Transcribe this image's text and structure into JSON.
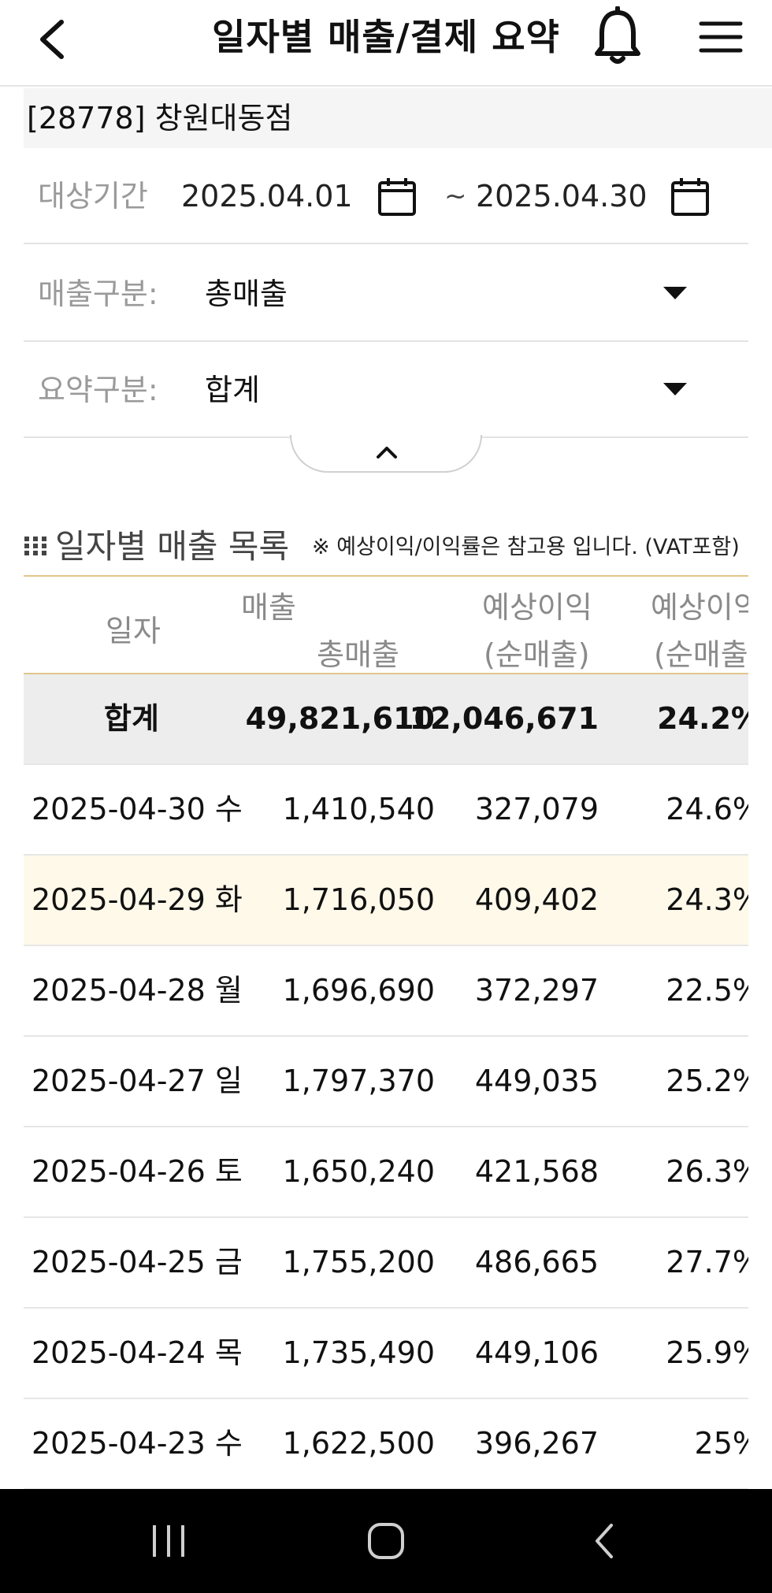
{
  "header": {
    "title": "일자별 매출/결제 요약"
  },
  "store": {
    "label": "[28778] 창원대동점"
  },
  "filters": {
    "period_label": "대상기간",
    "start_date": "2025.04.01",
    "separator": "~",
    "end_date": "2025.04.30",
    "sales_type_label": "매출구분:",
    "sales_type_value": "총매출",
    "summary_type_label": "요약구분:",
    "summary_type_value": "합계"
  },
  "section": {
    "title": "일자별 매출 목록",
    "note": "※ 예상이익/이익률은 참고용 입니다. (VAT포함)"
  },
  "table": {
    "headers": {
      "date": "일자",
      "sales_group": "매출",
      "sales": "총매출",
      "profit_line1": "예상이익",
      "profit_line2": "(순매출)",
      "rate_line1": "예상이익",
      "rate_line2": "(순매출)"
    },
    "total": {
      "date": "합계",
      "sales": "49,821,610",
      "profit": "12,046,671",
      "rate": "24.2%"
    },
    "rows": [
      {
        "date": "2025-04-30 수",
        "sales": "1,410,540",
        "profit": "327,079",
        "rate": "24.6%"
      },
      {
        "date": "2025-04-29 화",
        "sales": "1,716,050",
        "profit": "409,402",
        "rate": "24.3%"
      },
      {
        "date": "2025-04-28 월",
        "sales": "1,696,690",
        "profit": "372,297",
        "rate": "22.5%"
      },
      {
        "date": "2025-04-27 일",
        "sales": "1,797,370",
        "profit": "449,035",
        "rate": "25.2%"
      },
      {
        "date": "2025-04-26 토",
        "sales": "1,650,240",
        "profit": "421,568",
        "rate": "26.3%"
      },
      {
        "date": "2025-04-25 금",
        "sales": "1,755,200",
        "profit": "486,665",
        "rate": "27.7%"
      },
      {
        "date": "2025-04-24 목",
        "sales": "1,735,490",
        "profit": "449,106",
        "rate": "25.9%"
      },
      {
        "date": "2025-04-23 수",
        "sales": "1,622,500",
        "profit": "396,267",
        "rate": "25%"
      }
    ]
  },
  "icons": {
    "back": "chevron-left-icon",
    "bell": "bell-icon",
    "menu": "hamburger-menu-icon",
    "calendar": "calendar-icon",
    "dropdown": "caret-down-icon",
    "collapse": "chevron-up-icon",
    "section": "grid-dots-icon"
  },
  "colors": {
    "header_rule": "#e2c58a",
    "highlight_row": "#fff9ea",
    "total_row": "#ededed"
  }
}
